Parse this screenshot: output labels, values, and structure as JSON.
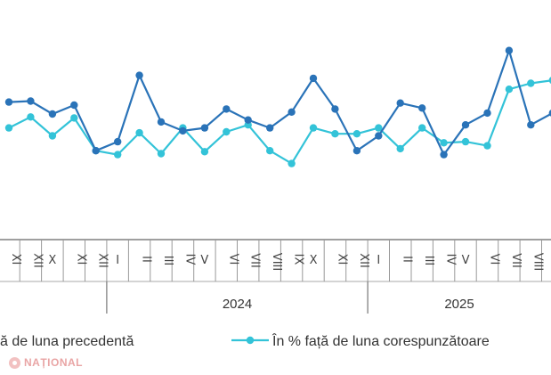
{
  "chart_data": {
    "type": "line",
    "x": [
      "XI",
      "XII",
      "X",
      "XI",
      "XII",
      "I",
      "II",
      "III",
      "IV",
      "V",
      "VI",
      "VII",
      "VIII",
      "IX",
      "X",
      "XI",
      "XII",
      "I",
      "II",
      "III",
      "IV",
      "V",
      "VI",
      "VII",
      "VIII",
      "IX",
      "X"
    ],
    "years": [
      {
        "label": "2024",
        "start_index": 5,
        "end_index": 16
      },
      {
        "label": "2025",
        "start_index": 17,
        "end_index": 26
      }
    ],
    "series": [
      {
        "name": "",
        "legend_suffix": "ă de luna precedentă",
        "color": "#2a73b8",
        "values": [
          104.6,
          104.7,
          103.4,
          104.3,
          99.7,
          100.6,
          107.3,
          102.6,
          101.7,
          102.0,
          103.9,
          102.8,
          102.0,
          103.6,
          107.0,
          103.9,
          99.7,
          101.2,
          104.5,
          104.0,
          99.3,
          102.3,
          103.5,
          109.8,
          102.3,
          103.5,
          106.6
        ]
      },
      {
        "name": "În % față de luna corespunzătoare",
        "color": "#33c3d8",
        "values": [
          102.0,
          103.1,
          101.2,
          103.0,
          99.7,
          99.3,
          101.5,
          99.4,
          102.0,
          99.6,
          101.6,
          102.3,
          99.7,
          98.4,
          102.0,
          101.4,
          101.4,
          102.0,
          99.9,
          102.0,
          100.5,
          100.6,
          100.2,
          105.9,
          106.5,
          106.8,
          106.6
        ]
      }
    ],
    "ylim": [
      91,
      114
    ],
    "grid": false,
    "legend": "bottom"
  },
  "colors": {
    "axis": "#666666",
    "text": "#333333"
  },
  "watermark": "NAȚIONAL"
}
